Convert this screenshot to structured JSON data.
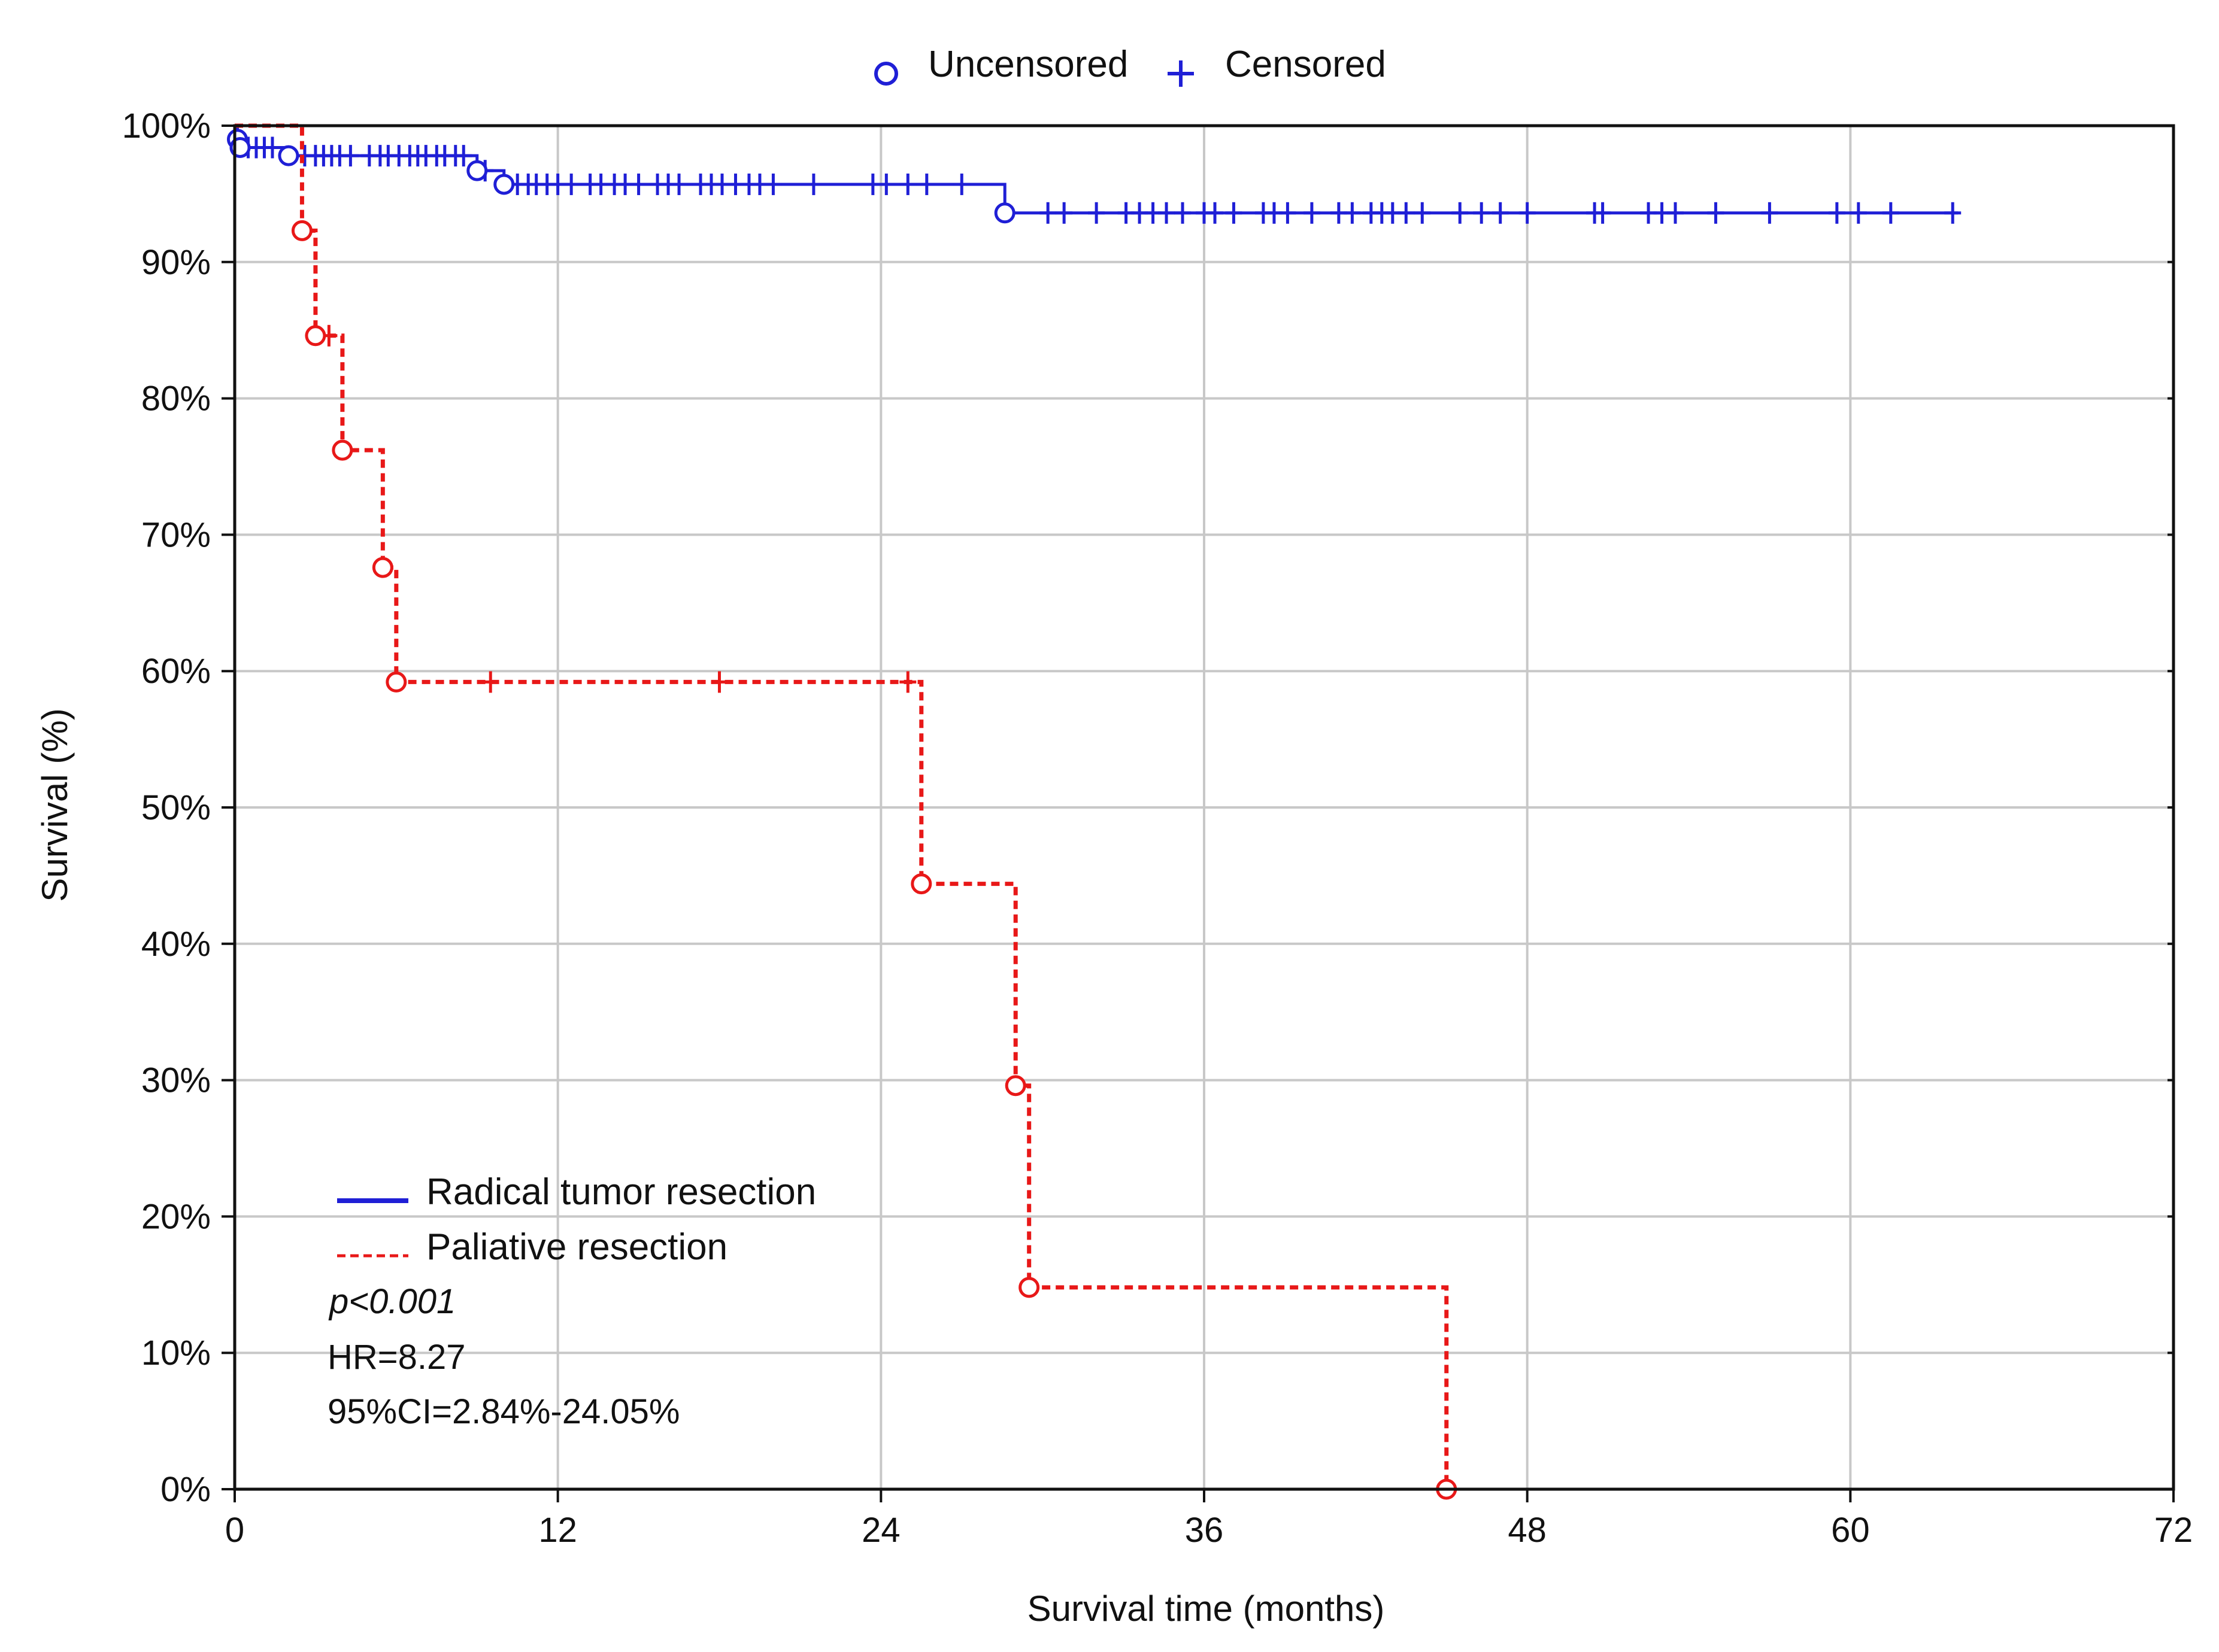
{
  "chart_data": {
    "type": "line",
    "title": "",
    "xlabel": "Survival time (months)",
    "ylabel": "Survival (%)",
    "xlim": [
      0,
      72
    ],
    "ylim": [
      0,
      100
    ],
    "xticks": [
      "0",
      "12",
      "24",
      "36",
      "48",
      "60",
      "72"
    ],
    "yticks": [
      "0%",
      "10%",
      "20%",
      "30%",
      "40%",
      "50%",
      "60%",
      "70%",
      "80%",
      "90%",
      "100%"
    ],
    "grid": true,
    "marker_legend": {
      "position": "top-center",
      "uncensored_label": "Uncensored",
      "censored_label": "Censored"
    },
    "series_legend_position": "bottom-left",
    "series": [
      {
        "name": "Radical tumor resection",
        "color": "#1f1fd6",
        "line_style": "solid",
        "steps": [
          {
            "x": 0,
            "y": 100
          },
          {
            "x": 0.1,
            "y": 99
          },
          {
            "x": 0.2,
            "y": 98.4
          },
          {
            "x": 2.0,
            "y": 97.8
          },
          {
            "x": 9.0,
            "y": 96.7
          },
          {
            "x": 10.0,
            "y": 95.7
          },
          {
            "x": 28.6,
            "y": 93.6
          },
          {
            "x": 64.0,
            "y": 93.6
          }
        ],
        "events": [
          0.1,
          0.2,
          2.0,
          9.0,
          10.0,
          28.6
        ],
        "censored": [
          0.5,
          0.8,
          1.1,
          1.4,
          2.6,
          3.0,
          3.3,
          3.6,
          3.9,
          4.3,
          5.0,
          5.4,
          5.7,
          6.1,
          6.5,
          6.8,
          7.1,
          7.5,
          7.8,
          8.2,
          8.5,
          9.3,
          10.5,
          10.9,
          11.2,
          11.6,
          12.0,
          12.5,
          13.2,
          13.6,
          14.1,
          14.5,
          15.0,
          15.7,
          16.1,
          16.5,
          17.3,
          17.7,
          18.1,
          18.6,
          19.1,
          19.5,
          20.0,
          21.5,
          23.7,
          24.2,
          25.0,
          25.7,
          27.0,
          30.2,
          30.8,
          32.0,
          33.1,
          33.6,
          34.1,
          34.6,
          35.2,
          36.0,
          36.4,
          37.1,
          38.2,
          38.6,
          39.1,
          40.0,
          41.0,
          41.5,
          42.2,
          42.6,
          43.0,
          43.5,
          44.1,
          45.5,
          46.3,
          47.0,
          48.0,
          50.5,
          50.8,
          52.5,
          53.0,
          53.5,
          55.0,
          57.0,
          59.5,
          60.3,
          61.5,
          63.8
        ]
      },
      {
        "name": "Paliative resection",
        "color": "#e81818",
        "line_style": "dashed",
        "steps": [
          {
            "x": 0,
            "y": 100
          },
          {
            "x": 2.5,
            "y": 92.3
          },
          {
            "x": 3.0,
            "y": 84.6
          },
          {
            "x": 4.0,
            "y": 76.2
          },
          {
            "x": 5.5,
            "y": 67.6
          },
          {
            "x": 6.0,
            "y": 59.2
          },
          {
            "x": 25.5,
            "y": 44.4
          },
          {
            "x": 29.0,
            "y": 29.6
          },
          {
            "x": 29.5,
            "y": 14.8
          },
          {
            "x": 45.0,
            "y": 0
          }
        ],
        "events": [
          2.5,
          3.0,
          4.0,
          5.5,
          6.0,
          25.5,
          29.0,
          29.5,
          45.0
        ],
        "censored": [
          3.5,
          9.5,
          18.0,
          25.0
        ]
      }
    ],
    "annotations": {
      "p_value": "p<0.001",
      "hr": "HR=8.27",
      "ci": "95%CI=2.84%-24.05%"
    }
  }
}
